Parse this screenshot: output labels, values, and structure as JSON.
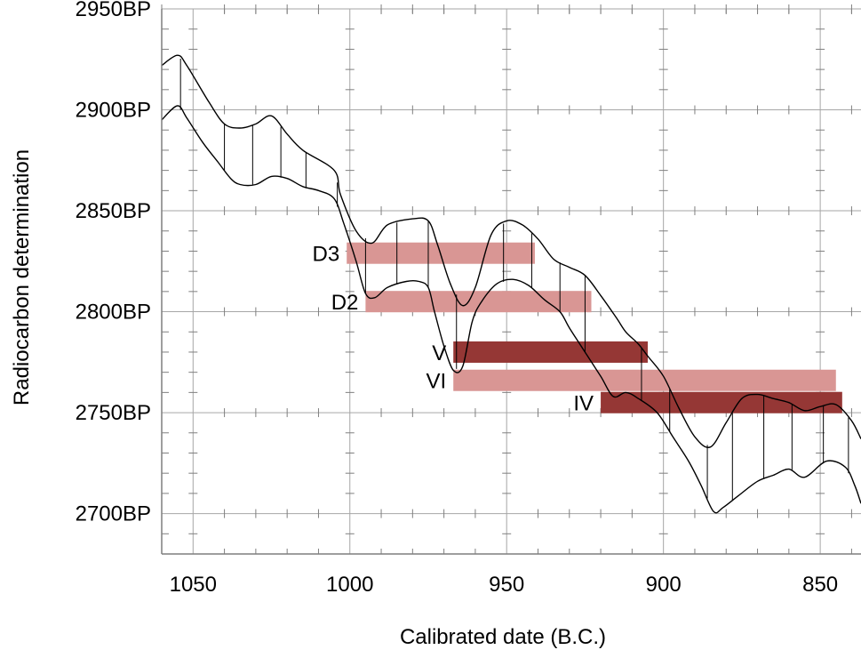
{
  "chart_data": {
    "type": "calibration-curve",
    "xlabel": "Calibrated date (B.C.)",
    "ylabel": "Radiocarbon determination",
    "xlim": [
      1060,
      837
    ],
    "ylim": [
      2680,
      2950
    ],
    "x_ticks": [
      {
        "value": 1050,
        "label": "1050"
      },
      {
        "value": 1000,
        "label": "1000"
      },
      {
        "value": 950,
        "label": "950"
      },
      {
        "value": 900,
        "label": "900"
      },
      {
        "value": 850,
        "label": "850"
      }
    ],
    "y_ticks": [
      {
        "value": 2950,
        "label": "2950BP"
      },
      {
        "value": 2900,
        "label": "2900BP"
      },
      {
        "value": 2850,
        "label": "2850BP"
      },
      {
        "value": 2800,
        "label": "2800BP"
      },
      {
        "value": 2750,
        "label": "2750BP"
      },
      {
        "value": 2700,
        "label": "2700BP"
      }
    ],
    "grid": true,
    "upper_curve": [
      [
        1060,
        2922
      ],
      [
        1055,
        2927
      ],
      [
        1052,
        2922
      ],
      [
        1045,
        2904
      ],
      [
        1040,
        2893
      ],
      [
        1035,
        2891
      ],
      [
        1030,
        2893
      ],
      [
        1025,
        2897
      ],
      [
        1020,
        2888
      ],
      [
        1015,
        2880
      ],
      [
        1005,
        2870
      ],
      [
        1003,
        2858
      ],
      [
        998,
        2840
      ],
      [
        993,
        2834
      ],
      [
        988,
        2843
      ],
      [
        980,
        2846
      ],
      [
        975,
        2845
      ],
      [
        972,
        2833
      ],
      [
        968,
        2814
      ],
      [
        964,
        2803
      ],
      [
        960,
        2812
      ],
      [
        955,
        2838
      ],
      [
        950,
        2845
      ],
      [
        945,
        2843
      ],
      [
        940,
        2836
      ],
      [
        935,
        2826
      ],
      [
        930,
        2822
      ],
      [
        925,
        2818
      ],
      [
        920,
        2808
      ],
      [
        915,
        2797
      ],
      [
        912,
        2790
      ],
      [
        908,
        2784
      ],
      [
        905,
        2778
      ],
      [
        900,
        2768
      ],
      [
        895,
        2752
      ],
      [
        890,
        2738
      ],
      [
        885,
        2733
      ],
      [
        880,
        2745
      ],
      [
        875,
        2757
      ],
      [
        870,
        2759
      ],
      [
        865,
        2757
      ],
      [
        860,
        2755
      ],
      [
        855,
        2751
      ],
      [
        850,
        2753
      ],
      [
        845,
        2754
      ],
      [
        840,
        2746
      ],
      [
        837,
        2737
      ]
    ],
    "lower_curve": [
      [
        1060,
        2895
      ],
      [
        1055,
        2902
      ],
      [
        1052,
        2896
      ],
      [
        1047,
        2884
      ],
      [
        1042,
        2874
      ],
      [
        1038,
        2866
      ],
      [
        1035,
        2863
      ],
      [
        1030,
        2863
      ],
      [
        1025,
        2867
      ],
      [
        1020,
        2866
      ],
      [
        1015,
        2862
      ],
      [
        1010,
        2860
      ],
      [
        1005,
        2856
      ],
      [
        1002,
        2844
      ],
      [
        998,
        2825
      ],
      [
        995,
        2809
      ],
      [
        992,
        2807
      ],
      [
        988,
        2812
      ],
      [
        982,
        2815
      ],
      [
        978,
        2815
      ],
      [
        975,
        2812
      ],
      [
        973,
        2800
      ],
      [
        970,
        2783
      ],
      [
        967,
        2771
      ],
      [
        964,
        2773
      ],
      [
        961,
        2795
      ],
      [
        958,
        2805
      ],
      [
        953,
        2814
      ],
      [
        948,
        2816
      ],
      [
        943,
        2813
      ],
      [
        938,
        2806
      ],
      [
        933,
        2800
      ],
      [
        930,
        2792
      ],
      [
        925,
        2780
      ],
      [
        920,
        2768
      ],
      [
        916,
        2758
      ],
      [
        912,
        2760
      ],
      [
        908,
        2757
      ],
      [
        902,
        2750
      ],
      [
        897,
        2738
      ],
      [
        892,
        2726
      ],
      [
        888,
        2714
      ],
      [
        884,
        2701
      ],
      [
        881,
        2703
      ],
      [
        876,
        2709
      ],
      [
        870,
        2716
      ],
      [
        865,
        2719
      ],
      [
        860,
        2722
      ],
      [
        855,
        2718
      ],
      [
        848,
        2726
      ],
      [
        842,
        2723
      ],
      [
        839,
        2714
      ],
      [
        837,
        2705
      ]
    ],
    "hatch_x": [
      1054,
      1040,
      1031,
      1022,
      1014,
      1004,
      995,
      985,
      975,
      966,
      951,
      942,
      933,
      925,
      907,
      898,
      886,
      878,
      868,
      859,
      849,
      841
    ],
    "bands": [
      {
        "label": "D3",
        "x_from": 1001,
        "x_to": 941,
        "y": 2829,
        "color": "#d99694"
      },
      {
        "label": "D2",
        "x_from": 995,
        "x_to": 923,
        "y": 2805,
        "color": "#d99694"
      },
      {
        "label": "V",
        "x_from": 967,
        "x_to": 905,
        "y": 2780,
        "color": "#953735"
      },
      {
        "label": "VI",
        "x_from": 967,
        "x_to": 845,
        "y": 2766,
        "color": "#d99694"
      },
      {
        "label": "IV",
        "x_from": 920,
        "x_to": 843,
        "y": 2755,
        "color": "#953735"
      }
    ]
  }
}
